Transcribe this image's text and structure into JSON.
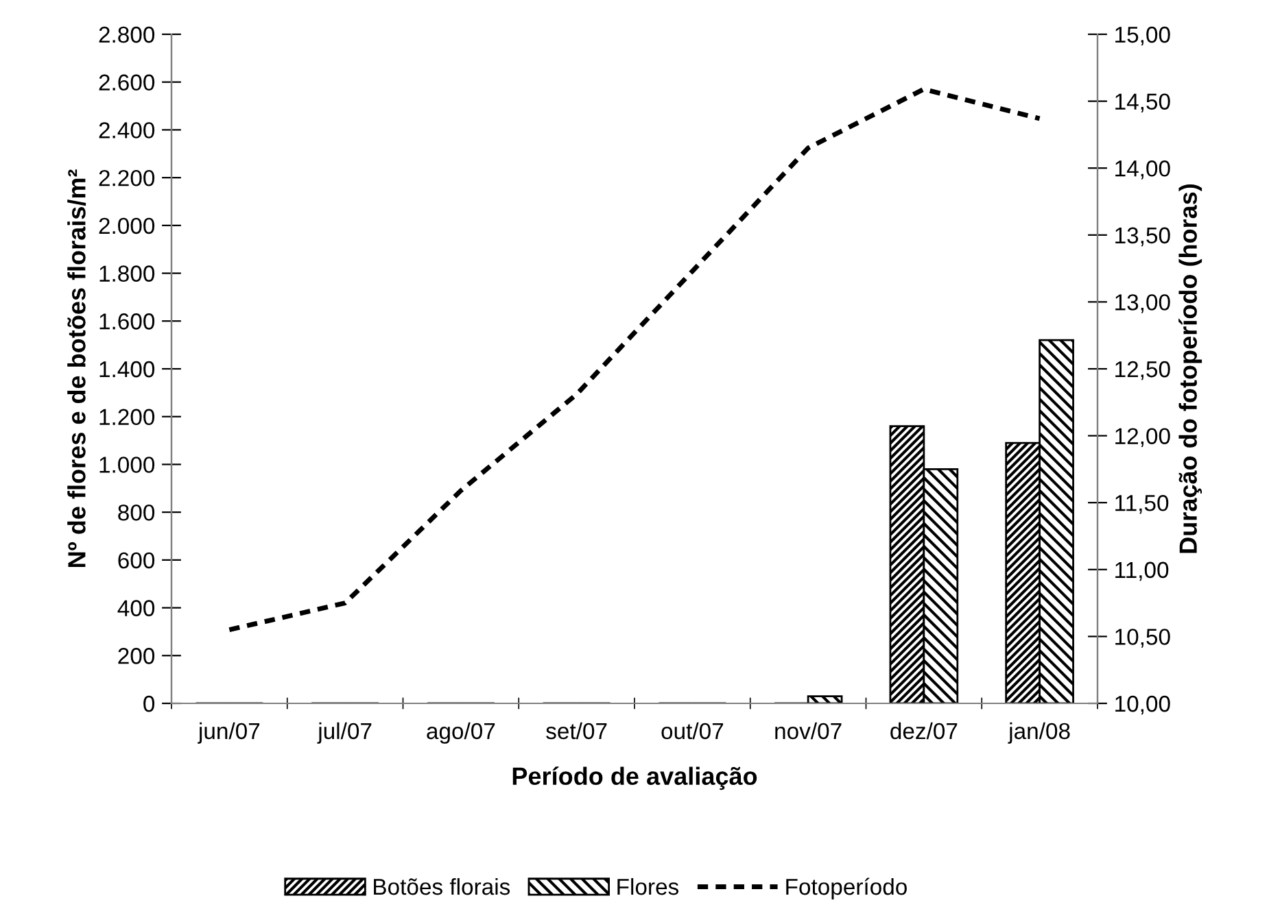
{
  "chart_data": {
    "type": "bar",
    "xlabel": "Período de avaliação",
    "ylabel": "Nº de flores e de botões florais/m²",
    "y2label": "Duração do fotoperíodo (horas)",
    "categories": [
      "jun/07",
      "jul/07",
      "ago/07",
      "set/07",
      "out/07",
      "nov/07",
      "dez/07",
      "jan/08"
    ],
    "series": [
      {
        "name": "Botões florais",
        "color": "#000000",
        "values": [
          0,
          0,
          0,
          0,
          0,
          0,
          1160,
          1090
        ]
      },
      {
        "name": "Flores",
        "color": "#000000",
        "values": [
          0,
          0,
          0,
          0,
          0,
          30,
          980,
          1520
        ]
      },
      {
        "name": "Fotoperíodo",
        "color": "#000000",
        "type": "line",
        "axis": "y2",
        "line_style": "dashed",
        "values": [
          10.55,
          10.75,
          11.59,
          12.31,
          13.23,
          14.15,
          14.59,
          14.37
        ]
      }
    ],
    "ylim": [
      0,
      2800
    ],
    "yticks": [
      {
        "value": 0,
        "label": "0"
      },
      {
        "value": 200,
        "label": "200"
      },
      {
        "value": 400,
        "label": "400"
      },
      {
        "value": 600,
        "label": "600"
      },
      {
        "value": 800,
        "label": "800"
      },
      {
        "value": 1000,
        "label": "1.000"
      },
      {
        "value": 1200,
        "label": "1.200"
      },
      {
        "value": 1400,
        "label": "1.400"
      },
      {
        "value": 1600,
        "label": "1.600"
      },
      {
        "value": 1800,
        "label": "1.800"
      },
      {
        "value": 2000,
        "label": "2.000"
      },
      {
        "value": 2200,
        "label": "2.200"
      },
      {
        "value": 2400,
        "label": "2.400"
      },
      {
        "value": 2600,
        "label": "2.600"
      },
      {
        "value": 2800,
        "label": "2.800"
      }
    ],
    "y2lim": [
      10,
      15
    ],
    "y2ticks": [
      {
        "value": 10,
        "label": "10,00"
      },
      {
        "value": 10.5,
        "label": "10,50"
      },
      {
        "value": 11,
        "label": "11,00"
      },
      {
        "value": 11.5,
        "label": "11,50"
      },
      {
        "value": 12,
        "label": "12,00"
      },
      {
        "value": 12.5,
        "label": "12,50"
      },
      {
        "value": 13,
        "label": "13,00"
      },
      {
        "value": 13.5,
        "label": "13,50"
      },
      {
        "value": 14,
        "label": "14,00"
      },
      {
        "value": 14.5,
        "label": "14,50"
      },
      {
        "value": 15,
        "label": "15,00"
      }
    ],
    "grid": false,
    "legend": "bottom"
  }
}
